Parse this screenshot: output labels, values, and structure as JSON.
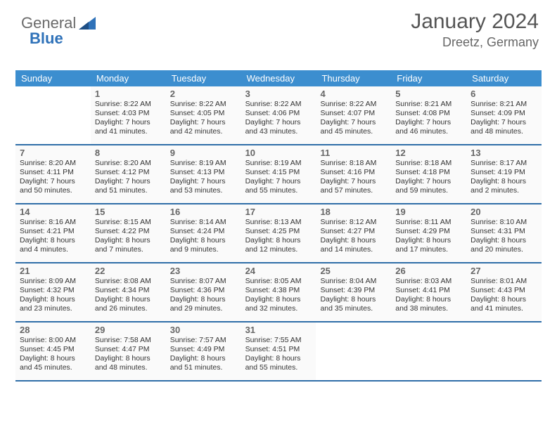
{
  "logo": {
    "word1": "General",
    "word2": "Blue"
  },
  "title": "January 2024",
  "subtitle": "Dreetz, Germany",
  "colors": {
    "header_bg": "#3c8ecf",
    "header_text": "#ffffff",
    "divider": "#2f6ea8",
    "cell_bg": "#fafafa",
    "text": "#333333",
    "title_text": "#555555",
    "logo_gray": "#6a6a6a",
    "logo_blue": "#2f72b9"
  },
  "typography": {
    "title_fontsize": 30,
    "subtitle_fontsize": 18,
    "header_fontsize": 13,
    "daynum_fontsize": 13,
    "info_fontsize": 10.5
  },
  "layout": {
    "columns": 7,
    "rows": 5,
    "start_day_index": 1
  },
  "weekdays": [
    "Sunday",
    "Monday",
    "Tuesday",
    "Wednesday",
    "Thursday",
    "Friday",
    "Saturday"
  ],
  "days": [
    {
      "n": "1",
      "sunrise": "8:22 AM",
      "sunset": "4:03 PM",
      "daylight": "7 hours and 41 minutes."
    },
    {
      "n": "2",
      "sunrise": "8:22 AM",
      "sunset": "4:05 PM",
      "daylight": "7 hours and 42 minutes."
    },
    {
      "n": "3",
      "sunrise": "8:22 AM",
      "sunset": "4:06 PM",
      "daylight": "7 hours and 43 minutes."
    },
    {
      "n": "4",
      "sunrise": "8:22 AM",
      "sunset": "4:07 PM",
      "daylight": "7 hours and 45 minutes."
    },
    {
      "n": "5",
      "sunrise": "8:21 AM",
      "sunset": "4:08 PM",
      "daylight": "7 hours and 46 minutes."
    },
    {
      "n": "6",
      "sunrise": "8:21 AM",
      "sunset": "4:09 PM",
      "daylight": "7 hours and 48 minutes."
    },
    {
      "n": "7",
      "sunrise": "8:20 AM",
      "sunset": "4:11 PM",
      "daylight": "7 hours and 50 minutes."
    },
    {
      "n": "8",
      "sunrise": "8:20 AM",
      "sunset": "4:12 PM",
      "daylight": "7 hours and 51 minutes."
    },
    {
      "n": "9",
      "sunrise": "8:19 AM",
      "sunset": "4:13 PM",
      "daylight": "7 hours and 53 minutes."
    },
    {
      "n": "10",
      "sunrise": "8:19 AM",
      "sunset": "4:15 PM",
      "daylight": "7 hours and 55 minutes."
    },
    {
      "n": "11",
      "sunrise": "8:18 AM",
      "sunset": "4:16 PM",
      "daylight": "7 hours and 57 minutes."
    },
    {
      "n": "12",
      "sunrise": "8:18 AM",
      "sunset": "4:18 PM",
      "daylight": "7 hours and 59 minutes."
    },
    {
      "n": "13",
      "sunrise": "8:17 AM",
      "sunset": "4:19 PM",
      "daylight": "8 hours and 2 minutes."
    },
    {
      "n": "14",
      "sunrise": "8:16 AM",
      "sunset": "4:21 PM",
      "daylight": "8 hours and 4 minutes."
    },
    {
      "n": "15",
      "sunrise": "8:15 AM",
      "sunset": "4:22 PM",
      "daylight": "8 hours and 7 minutes."
    },
    {
      "n": "16",
      "sunrise": "8:14 AM",
      "sunset": "4:24 PM",
      "daylight": "8 hours and 9 minutes."
    },
    {
      "n": "17",
      "sunrise": "8:13 AM",
      "sunset": "4:25 PM",
      "daylight": "8 hours and 12 minutes."
    },
    {
      "n": "18",
      "sunrise": "8:12 AM",
      "sunset": "4:27 PM",
      "daylight": "8 hours and 14 minutes."
    },
    {
      "n": "19",
      "sunrise": "8:11 AM",
      "sunset": "4:29 PM",
      "daylight": "8 hours and 17 minutes."
    },
    {
      "n": "20",
      "sunrise": "8:10 AM",
      "sunset": "4:31 PM",
      "daylight": "8 hours and 20 minutes."
    },
    {
      "n": "21",
      "sunrise": "8:09 AM",
      "sunset": "4:32 PM",
      "daylight": "8 hours and 23 minutes."
    },
    {
      "n": "22",
      "sunrise": "8:08 AM",
      "sunset": "4:34 PM",
      "daylight": "8 hours and 26 minutes."
    },
    {
      "n": "23",
      "sunrise": "8:07 AM",
      "sunset": "4:36 PM",
      "daylight": "8 hours and 29 minutes."
    },
    {
      "n": "24",
      "sunrise": "8:05 AM",
      "sunset": "4:38 PM",
      "daylight": "8 hours and 32 minutes."
    },
    {
      "n": "25",
      "sunrise": "8:04 AM",
      "sunset": "4:39 PM",
      "daylight": "8 hours and 35 minutes."
    },
    {
      "n": "26",
      "sunrise": "8:03 AM",
      "sunset": "4:41 PM",
      "daylight": "8 hours and 38 minutes."
    },
    {
      "n": "27",
      "sunrise": "8:01 AM",
      "sunset": "4:43 PM",
      "daylight": "8 hours and 41 minutes."
    },
    {
      "n": "28",
      "sunrise": "8:00 AM",
      "sunset": "4:45 PM",
      "daylight": "8 hours and 45 minutes."
    },
    {
      "n": "29",
      "sunrise": "7:58 AM",
      "sunset": "4:47 PM",
      "daylight": "8 hours and 48 minutes."
    },
    {
      "n": "30",
      "sunrise": "7:57 AM",
      "sunset": "4:49 PM",
      "daylight": "8 hours and 51 minutes."
    },
    {
      "n": "31",
      "sunrise": "7:55 AM",
      "sunset": "4:51 PM",
      "daylight": "8 hours and 55 minutes."
    }
  ],
  "labels": {
    "sunrise": "Sunrise: ",
    "sunset": "Sunset: ",
    "daylight": "Daylight: "
  }
}
